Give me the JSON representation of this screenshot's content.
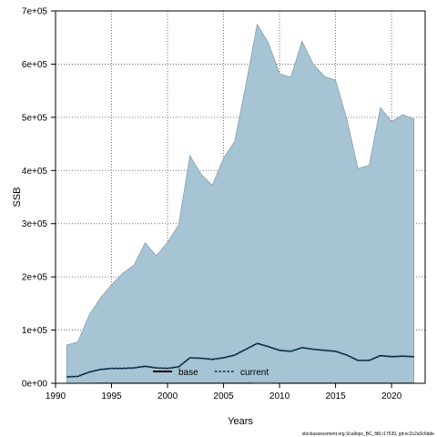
{
  "chart_data": {
    "type": "area",
    "xlabel": "Years",
    "ylabel": "SSB",
    "xlim": [
      1990,
      2023
    ],
    "ylim": [
      0,
      700000
    ],
    "x_ticks": [
      1990,
      1995,
      2000,
      2005,
      2010,
      2015,
      2020
    ],
    "x_tick_labels": [
      "1990",
      "1995",
      "2000",
      "2005",
      "2010",
      "2015",
      "2020"
    ],
    "y_ticks": [
      0,
      100000,
      200000,
      300000,
      400000,
      500000,
      600000,
      700000
    ],
    "y_tick_labels": [
      "0e+00",
      "1e+05",
      "2e+05",
      "3e+05",
      "4e+05",
      "5e+05",
      "6e+05",
      "7e+05"
    ],
    "grid": true,
    "legend_placement": "bottom-center",
    "x": [
      1991,
      1992,
      1993,
      1994,
      1995,
      1996,
      1997,
      1998,
      1999,
      2000,
      2001,
      2002,
      2003,
      2004,
      2005,
      2006,
      2007,
      2008,
      2009,
      2010,
      2011,
      2012,
      2013,
      2014,
      2015,
      2016,
      2017,
      2018,
      2019,
      2020,
      2021,
      2022
    ],
    "band_upper": [
      72000,
      78000,
      128000,
      160000,
      185000,
      207000,
      222000,
      264000,
      240000,
      265000,
      298000,
      428000,
      393000,
      372000,
      423000,
      455000,
      562000,
      675000,
      640000,
      582000,
      575000,
      643000,
      600000,
      577000,
      570000,
      497000,
      404000,
      410000,
      518000,
      492000,
      505000,
      497000
    ],
    "band_lower": [
      0,
      0,
      0,
      1000,
      1000,
      1000,
      1000,
      1000,
      1000,
      1000,
      1000,
      1000,
      1000,
      1000,
      1000,
      1000,
      1000,
      2000,
      2000,
      1000,
      1000,
      1000,
      1000,
      1000,
      1000,
      1000,
      1000,
      1000,
      1000,
      1000,
      1000,
      1000
    ],
    "series": [
      {
        "name": "base",
        "style": "solid",
        "color": "#000000",
        "values": [
          12000,
          13000,
          21000,
          26000,
          28000,
          28000,
          29000,
          32000,
          29000,
          28000,
          31000,
          48000,
          47000,
          45000,
          48000,
          53000,
          64000,
          75000,
          69000,
          62000,
          60000,
          67000,
          64000,
          62000,
          60000,
          53000,
          43000,
          43000,
          52000,
          50000,
          51000,
          50000
        ]
      },
      {
        "name": "current",
        "style": "dotted",
        "color": "#1a5276",
        "values": [
          12000,
          13000,
          21000,
          26000,
          28000,
          28000,
          29000,
          32000,
          29000,
          28000,
          31000,
          48000,
          47000,
          45000,
          48000,
          53000,
          64000,
          75000,
          69000,
          62000,
          60000,
          67000,
          64000,
          62000,
          60000,
          53000,
          43000,
          43000,
          52000,
          50000,
          51000,
          50000
        ]
      }
    ],
    "colors": {
      "band_fill": "#a6c4d4",
      "band_stroke": "#7f98a5",
      "grid": "#555555"
    },
    "footer": "stockassessment.org,Scallops_BC_fit8,r17539, git:ec2c2a0c6dde"
  }
}
